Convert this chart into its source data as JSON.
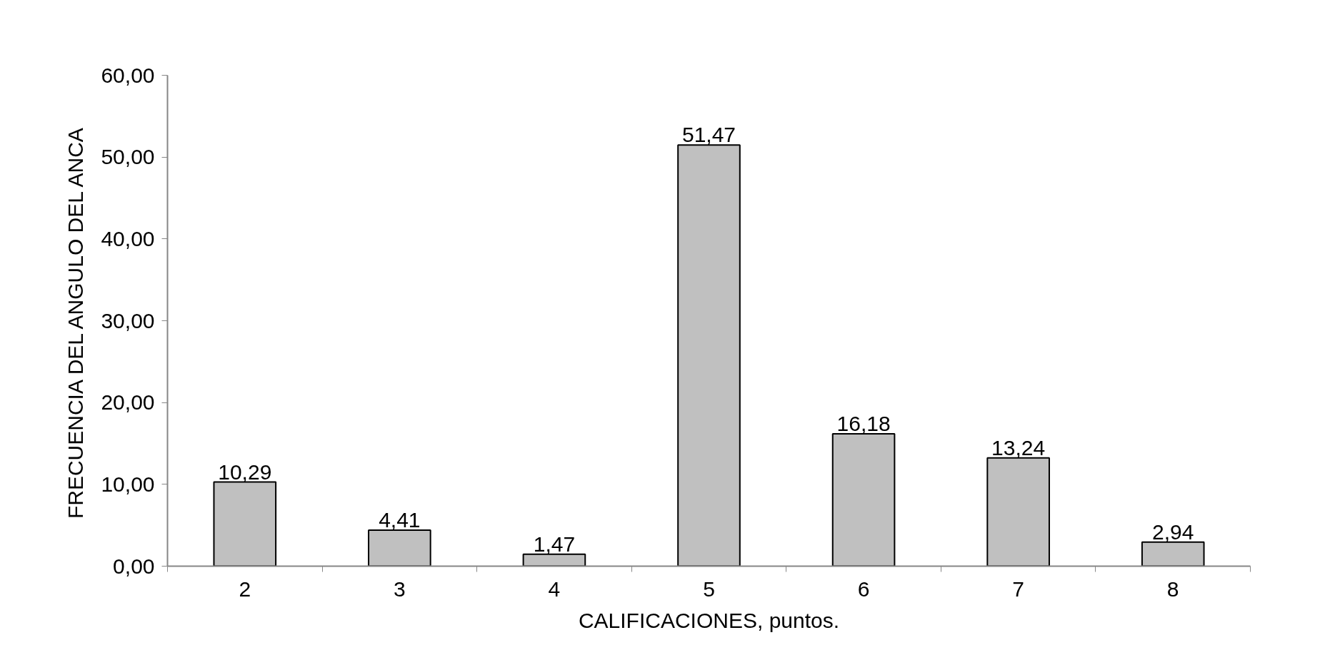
{
  "chart_data": {
    "type": "bar",
    "xlabel": "CALIFICACIONES, puntos.",
    "ylabel": "FRECUENCIA DEL ANGULO DEL ANCA",
    "categories": [
      "2",
      "3",
      "4",
      "5",
      "6",
      "7",
      "8"
    ],
    "values": [
      10.29,
      4.41,
      1.47,
      51.47,
      16.18,
      13.24,
      2.94
    ],
    "value_labels": [
      "10,29",
      "4,41",
      "1,47",
      "51,47",
      "16,18",
      "13,24",
      "2,94"
    ],
    "color": "#c0c0c0",
    "ylim": [
      0,
      60
    ],
    "yticks": [
      {
        "value": 0,
        "label": "0,00"
      },
      {
        "value": 10,
        "label": "10,00"
      },
      {
        "value": 20,
        "label": "20,00"
      },
      {
        "value": 30,
        "label": "30,00"
      },
      {
        "value": 40,
        "label": "40,00"
      },
      {
        "value": 50,
        "label": "50,00"
      },
      {
        "value": 60,
        "label": "60,00"
      }
    ]
  }
}
